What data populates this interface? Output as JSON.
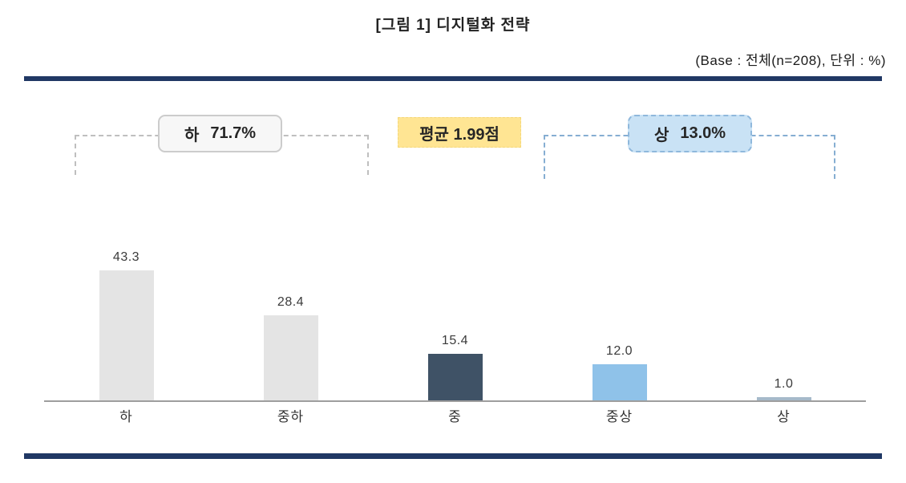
{
  "header": {
    "title": "[그림 1] 디지털화 전략",
    "base_note": "(Base : 전체(n=208), 단위 : %)"
  },
  "annotations": {
    "low_group": {
      "label": "하",
      "value": "71.7%"
    },
    "mean_badge": {
      "label": "평균 1.99점"
    },
    "high_group": {
      "label": "상",
      "value": "13.0%"
    }
  },
  "colors": {
    "rule_navy": "#203864",
    "bar_gray": "#e4e4e4",
    "bar_dark_navy": "#3f5266",
    "bar_light_blue": "#8fc2e9",
    "bar_steel": "#a6b9ca",
    "low_bracket": "#bfbfbf",
    "high_bracket": "#86aed2",
    "mean_badge_bg": "#ffe593",
    "high_box_bg": "#c9e2f5",
    "low_box_bg": "#f7f7f7"
  },
  "chart_data": {
    "type": "bar",
    "title": "[그림 1] 디지털화 전략",
    "categories": [
      "하",
      "중하",
      "중",
      "중상",
      "상"
    ],
    "values": [
      43.3,
      28.4,
      15.4,
      12.0,
      1.0
    ],
    "value_labels": [
      "43.3",
      "28.4",
      "15.4",
      "12.0",
      "1.0"
    ],
    "bar_colors": [
      "#e4e4e4",
      "#e4e4e4",
      "#3f5266",
      "#8fc2e9",
      "#a6b9ca"
    ],
    "xlabel": "",
    "ylabel": "단위 : %",
    "ylim": [
      0,
      50
    ],
    "grid": false,
    "legend": false,
    "annotations": [
      {
        "text": "하 71.7%",
        "covers": [
          "하",
          "중하"
        ]
      },
      {
        "text": "평균 1.99점",
        "covers": []
      },
      {
        "text": "상 13.0%",
        "covers": [
          "중상",
          "상"
        ]
      }
    ],
    "base": "전체(n=208)"
  }
}
